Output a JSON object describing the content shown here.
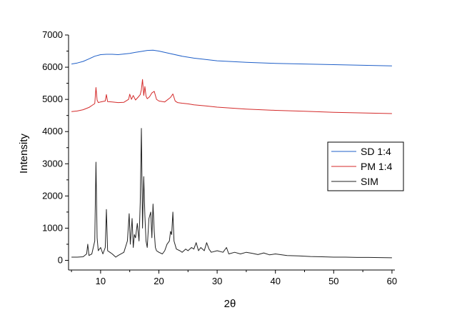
{
  "chart_data": {
    "type": "line",
    "xlabel": "2θ",
    "ylabel": "Intensity",
    "xlim": [
      4.5,
      60.5
    ],
    "ylim": [
      -300,
      7000
    ],
    "xticks": [
      10,
      20,
      30,
      40,
      50,
      60
    ],
    "yticks": [
      0,
      1000,
      2000,
      3000,
      4000,
      5000,
      6000,
      7000
    ],
    "grid": false,
    "legend_position": "right",
    "series": [
      {
        "name": "SD 1:4",
        "color": "#1f5fc8",
        "x": [
          5,
          6,
          7,
          8,
          9,
          10,
          11,
          12,
          13,
          14,
          15,
          16,
          17,
          18,
          19,
          20,
          22,
          24,
          26,
          28,
          30,
          35,
          40,
          45,
          50,
          55,
          60
        ],
        "y": [
          6100,
          6130,
          6180,
          6260,
          6340,
          6390,
          6400,
          6400,
          6390,
          6410,
          6430,
          6460,
          6490,
          6520,
          6530,
          6500,
          6420,
          6340,
          6280,
          6240,
          6200,
          6150,
          6120,
          6100,
          6080,
          6060,
          6040
        ]
      },
      {
        "name": "PM 1:4",
        "color": "#d42a2a",
        "x": [
          5,
          6,
          7,
          8,
          9,
          9.2,
          9.4,
          9.6,
          10,
          10.8,
          11,
          11.2,
          12,
          13,
          14,
          14.8,
          15,
          15.3,
          15.6,
          16,
          16.5,
          16.8,
          17,
          17.2,
          17.4,
          17.6,
          17.8,
          18,
          18.4,
          18.8,
          19.2,
          19.6,
          20,
          21,
          22,
          22.4,
          22.8,
          23.2,
          24,
          25,
          26,
          28,
          30,
          35,
          40,
          45,
          50,
          55,
          60
        ],
        "y": [
          4620,
          4640,
          4680,
          4750,
          4870,
          5370,
          4980,
          4900,
          4920,
          4950,
          5150,
          4930,
          4920,
          4900,
          4910,
          5000,
          5160,
          5000,
          5120,
          4980,
          5080,
          5150,
          5300,
          5620,
          5120,
          5400,
          5100,
          5020,
          5080,
          5200,
          5250,
          5000,
          4950,
          4920,
          5060,
          5170,
          4950,
          4900,
          4880,
          4860,
          4830,
          4800,
          4760,
          4700,
          4660,
          4630,
          4600,
          4580,
          4560
        ]
      },
      {
        "name": "SIM",
        "color": "#222222",
        "x": [
          5,
          6,
          7,
          7.6,
          7.8,
          8,
          8.5,
          9,
          9.2,
          9.4,
          9.6,
          10,
          10.4,
          10.8,
          11,
          11.2,
          11.6,
          12,
          12.6,
          13,
          14,
          14.6,
          14.9,
          15.1,
          15.4,
          15.6,
          15.8,
          16,
          16.3,
          16.6,
          16.8,
          17,
          17.2,
          17.4,
          17.6,
          17.8,
          18,
          18.3,
          18.6,
          18.8,
          19,
          19.2,
          19.4,
          19.6,
          20,
          20.6,
          21,
          21.4,
          21.8,
          22,
          22.2,
          22.4,
          22.6,
          23,
          23.6,
          24,
          24.6,
          25,
          25.6,
          26,
          26.4,
          26.8,
          27.2,
          27.8,
          28.2,
          28.6,
          29,
          30,
          31,
          31.6,
          32,
          33,
          34,
          35,
          36,
          37,
          38,
          39,
          40,
          42,
          44,
          46,
          48,
          50,
          52,
          54,
          56,
          58,
          60
        ],
        "y": [
          100,
          100,
          110,
          200,
          500,
          150,
          200,
          600,
          3050,
          700,
          300,
          400,
          200,
          400,
          1580,
          300,
          250,
          200,
          100,
          150,
          250,
          600,
          1450,
          500,
          1300,
          400,
          800,
          700,
          1150,
          600,
          1800,
          4100,
          1000,
          2600,
          1400,
          600,
          400,
          1300,
          1500,
          700,
          1750,
          900,
          400,
          300,
          250,
          200,
          300,
          500,
          600,
          900,
          800,
          1500,
          600,
          350,
          300,
          250,
          350,
          300,
          400,
          350,
          550,
          300,
          400,
          300,
          550,
          350,
          250,
          300,
          250,
          400,
          200,
          250,
          200,
          250,
          220,
          180,
          230,
          170,
          200,
          150,
          140,
          120,
          110,
          100,
          100,
          90,
          90,
          85,
          80
        ]
      }
    ]
  }
}
